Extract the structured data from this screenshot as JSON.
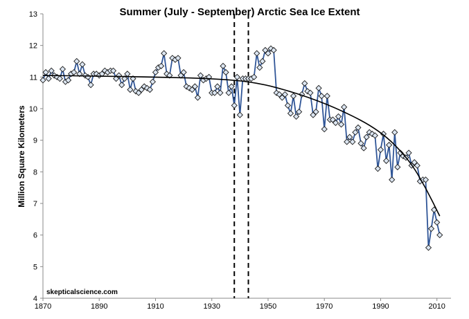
{
  "chart_data": {
    "type": "line",
    "title": "Summer (July - September) Arctic Sea Ice Extent",
    "xlabel": "",
    "ylabel": "Million Square Kilometers",
    "xlim": [
      1870,
      2015
    ],
    "ylim": [
      4,
      13
    ],
    "x_ticks": [
      1870,
      1890,
      1910,
      1930,
      1950,
      1970,
      1990,
      2010
    ],
    "y_ticks": [
      4,
      5,
      6,
      7,
      8,
      9,
      10,
      11,
      12,
      13
    ],
    "grid": false,
    "watermark": "skepticalscience.com",
    "series_color": "#2f5597",
    "marker_fill": "#dce6f2",
    "start_year": 1870,
    "values": [
      10.9,
      11.15,
      10.95,
      11.2,
      11.05,
      11.0,
      10.95,
      11.25,
      10.85,
      10.9,
      11.1,
      11.15,
      11.5,
      11.1,
      11.4,
      11.05,
      11.0,
      10.75,
      11.1,
      11.1,
      11.05,
      11.1,
      11.2,
      11.15,
      11.2,
      11.2,
      10.95,
      11.05,
      10.75,
      10.95,
      11.1,
      10.6,
      10.95,
      10.55,
      10.5,
      10.6,
      10.7,
      10.65,
      10.6,
      10.85,
      11.15,
      11.3,
      11.35,
      11.75,
      11.1,
      11.05,
      11.6,
      11.55,
      11.6,
      11.05,
      11.15,
      10.7,
      10.65,
      10.6,
      10.7,
      10.35,
      11.05,
      10.9,
      10.95,
      11.0,
      10.5,
      10.5,
      10.7,
      10.5,
      11.35,
      11.15,
      10.5,
      10.7,
      10.1,
      11.0,
      9.8,
      10.95,
      10.95,
      10.95,
      10.95,
      11.0,
      11.75,
      11.3,
      11.5,
      11.85,
      11.75,
      11.9,
      11.85,
      10.5,
      10.45,
      10.35,
      10.45,
      10.1,
      9.85,
      10.4,
      9.75,
      9.9,
      10.45,
      10.8,
      10.55,
      10.5,
      9.8,
      9.9,
      10.65,
      10.4,
      9.35,
      10.4,
      9.65,
      9.65,
      9.55,
      9.75,
      9.5,
      10.05,
      8.95,
      9.1,
      8.95,
      9.25,
      9.4,
      8.9,
      8.75,
      9.1,
      9.25,
      9.2,
      9.15,
      8.1,
      8.7,
      9.2,
      8.35,
      8.85,
      7.75,
      9.25,
      8.15,
      8.6,
      8.5,
      8.45,
      8.6,
      8.2,
      8.3,
      8.2,
      7.7,
      7.75,
      7.75,
      5.6,
      6.2,
      6.8,
      6.4,
      6.0
    ],
    "trendline": [
      {
        "x": 1870,
        "y": 11.05
      },
      {
        "x": 1890,
        "y": 11.03
      },
      {
        "x": 1910,
        "y": 11.0
      },
      {
        "x": 1930,
        "y": 10.95
      },
      {
        "x": 1945,
        "y": 10.85
      },
      {
        "x": 1960,
        "y": 10.5
      },
      {
        "x": 1975,
        "y": 10.0
      },
      {
        "x": 1990,
        "y": 9.3
      },
      {
        "x": 2000,
        "y": 8.4
      },
      {
        "x": 2006,
        "y": 7.5
      },
      {
        "x": 2011,
        "y": 6.6
      }
    ],
    "vertical_dashed_lines": [
      1938,
      1943
    ]
  }
}
